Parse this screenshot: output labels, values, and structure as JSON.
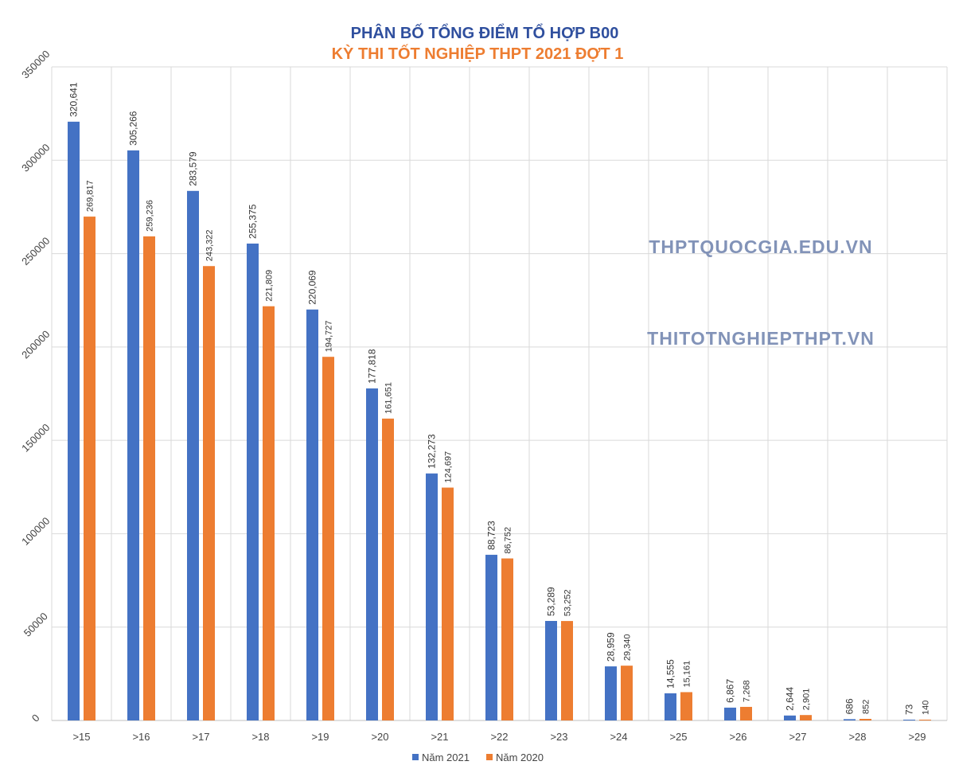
{
  "chart_data": {
    "type": "bar",
    "title": "PHÂN BỐ TỔNG ĐIỂM TỔ HỢP B00",
    "subtitle": "KỲ THI TỐT NGHIỆP THPT 2021 ĐỢT 1",
    "categories": [
      ">15",
      ">16",
      ">17",
      ">18",
      ">19",
      ">20",
      ">21",
      ">22",
      ">23",
      ">24",
      ">25",
      ">26",
      ">27",
      ">28",
      ">29"
    ],
    "series": [
      {
        "name": "Năm 2021",
        "color": "#4472c4",
        "values": [
          320641,
          305266,
          283579,
          255375,
          220069,
          177818,
          132273,
          88723,
          53289,
          28959,
          14555,
          6867,
          2644,
          686,
          73
        ],
        "labels": [
          "320,641",
          "305,266",
          "283,579",
          "255,375",
          "220,069",
          "177,818",
          "132,273",
          "88,723",
          "53,289",
          "28,959",
          "14,555",
          "6,867",
          "2,644",
          "686",
          "73"
        ]
      },
      {
        "name": "Năm 2020",
        "color": "#ed7d31",
        "values": [
          269817,
          259236,
          243322,
          221809,
          194727,
          161651,
          124697,
          86752,
          53252,
          29340,
          15161,
          7268,
          2901,
          852,
          140
        ],
        "labels": [
          "269,817",
          "259,236",
          "243,322",
          "221,809",
          "194,727",
          "161,651",
          "124,697",
          "86,752",
          "53,252",
          "29,340",
          "15,161",
          "7,268",
          "2,901",
          "852",
          "140"
        ]
      }
    ],
    "ylim": [
      0,
      350000
    ],
    "yticks": [
      "0",
      "50000",
      "100000",
      "150000",
      "200000",
      "250000",
      "300000",
      "350000"
    ],
    "xlabel": "",
    "ylabel": "",
    "grid": true,
    "legend_position": "bottom"
  },
  "watermarks": [
    "THPTQUOCGIA.EDU.VN",
    "THITOTNGHIEPTHPT.VN"
  ]
}
